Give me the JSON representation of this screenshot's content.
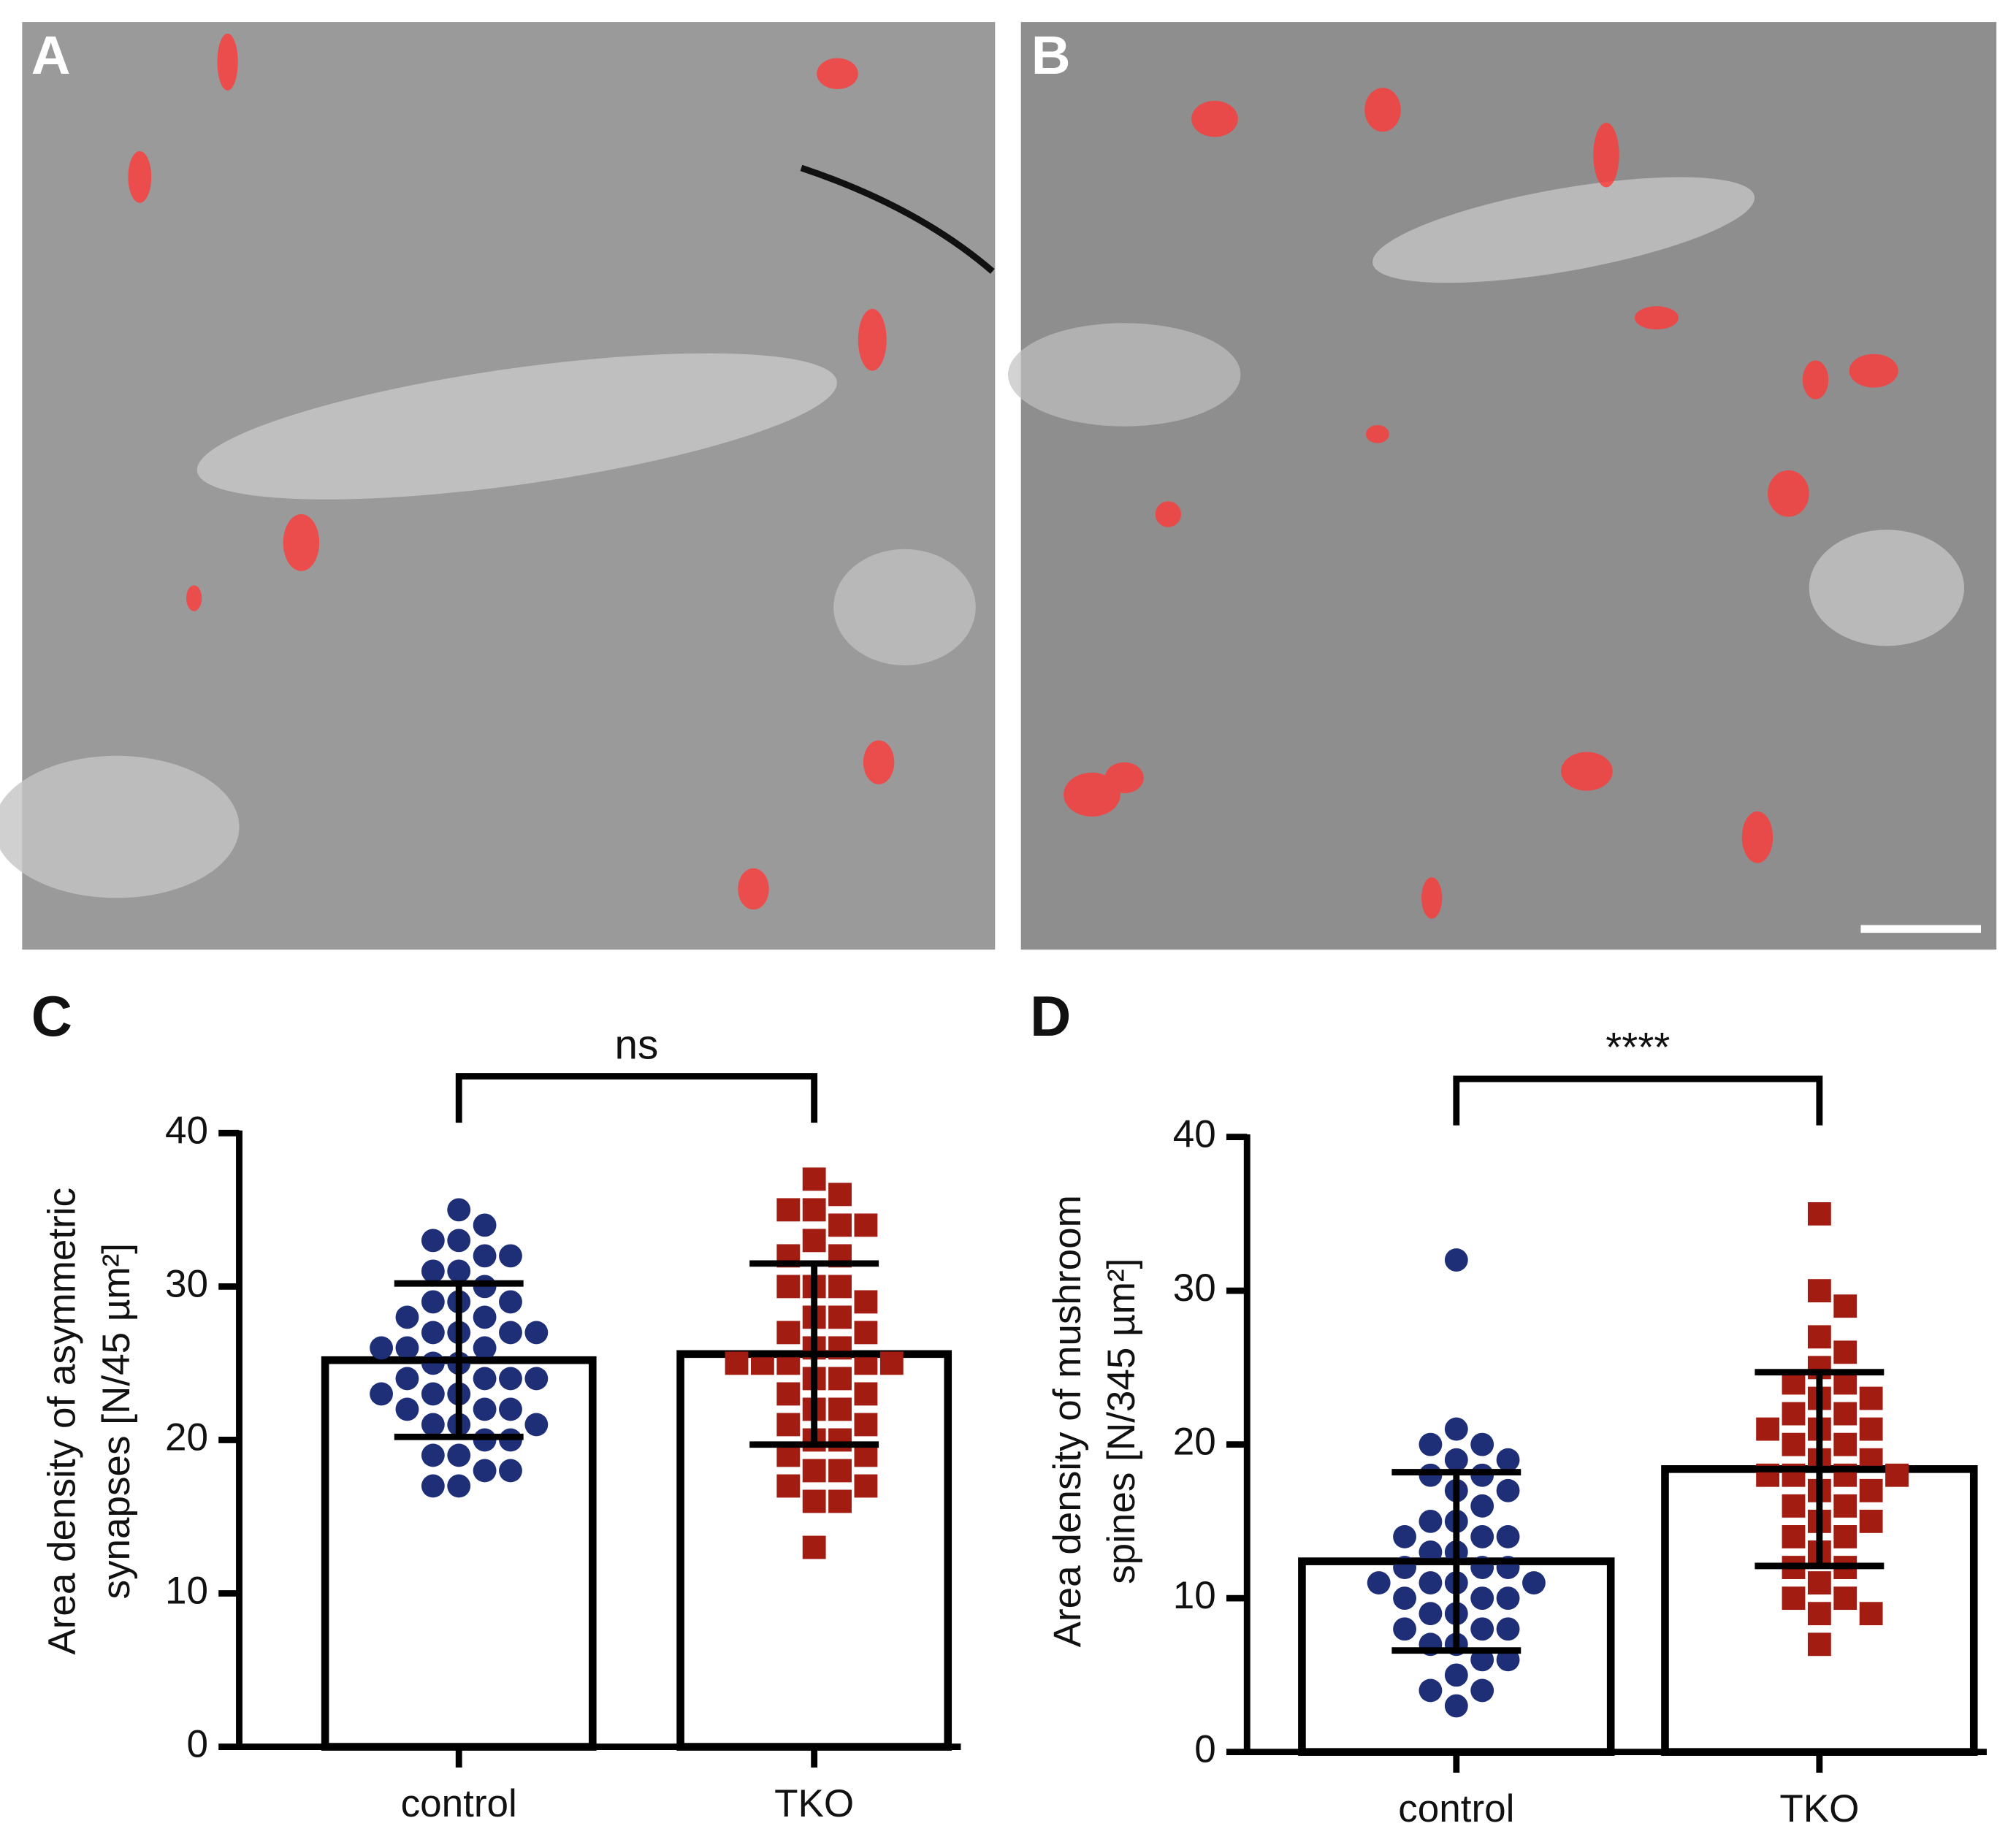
{
  "panels": [
    {
      "label": "A"
    },
    {
      "label": "B"
    }
  ],
  "chart_data": [
    {
      "type": "bar",
      "panel": "C",
      "ylabel": [
        "Area density of asymmetric",
        "synapses [N/45 µm²]"
      ],
      "categories": [
        "control",
        "TKO"
      ],
      "values": [
        25.2,
        25.6
      ],
      "errors": [
        5.0,
        5.9
      ],
      "colors": [
        "#1e2f78",
        "#a31c12"
      ],
      "significance": "ns",
      "points": [
        [
          35,
          34,
          33,
          33,
          32,
          32,
          31,
          31,
          30,
          29,
          29,
          29,
          28,
          28,
          27,
          27,
          27,
          27,
          26,
          26,
          26,
          25,
          25,
          24,
          24,
          24,
          24,
          23,
          23,
          23,
          22,
          22,
          22,
          21,
          21,
          21,
          20,
          20,
          19,
          19,
          18,
          18,
          17,
          17
        ],
        [
          37,
          36,
          35,
          35,
          34,
          34,
          33,
          32,
          32,
          30,
          30,
          30,
          29,
          28,
          28,
          27,
          27,
          26,
          26,
          25,
          25,
          25,
          25,
          25,
          24,
          24,
          23,
          23,
          22,
          22,
          21,
          21,
          20,
          20,
          19,
          19,
          18,
          18,
          17,
          17,
          16,
          16,
          13
        ]
      ],
      "ylim": [
        0,
        40
      ],
      "yticks": [
        0,
        10,
        20,
        30,
        40
      ]
    },
    {
      "type": "bar",
      "panel": "D",
      "ylabel": [
        "Area density of mushroom",
        "spines [N/345 µm²]"
      ],
      "categories": [
        "control",
        "TKO"
      ],
      "values": [
        12.4,
        18.4
      ],
      "errors": [
        5.8,
        6.3
      ],
      "colors": [
        "#1e2f78",
        "#a31c12"
      ],
      "significance": "****",
      "points": [
        [
          32,
          21,
          20,
          20,
          19,
          19,
          18,
          18,
          17,
          17,
          16,
          15,
          15,
          14,
          14,
          14,
          13,
          13,
          12,
          12,
          12,
          11,
          11,
          11,
          11,
          10,
          10,
          10,
          9,
          9,
          8,
          8,
          8,
          7,
          7,
          6,
          6,
          5,
          4,
          4,
          3
        ],
        [
          35,
          30,
          29,
          27,
          26,
          25,
          24,
          24,
          23,
          23,
          22,
          22,
          21,
          21,
          21,
          20,
          20,
          19,
          19,
          18,
          18,
          18,
          18,
          17,
          17,
          16,
          16,
          15,
          15,
          14,
          14,
          13,
          12,
          12,
          11,
          10,
          10,
          9,
          9,
          7
        ]
      ],
      "ylim": [
        0,
        40
      ],
      "yticks": [
        0,
        10,
        20,
        30,
        40
      ]
    }
  ]
}
